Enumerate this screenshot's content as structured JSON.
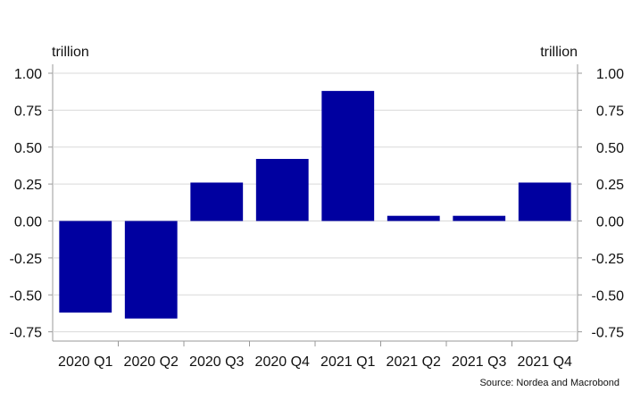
{
  "chart_data": {
    "type": "bar",
    "categories": [
      "2020 Q1",
      "2020 Q2",
      "2020 Q3",
      "2020 Q4",
      "2021 Q1",
      "2021 Q2",
      "2021 Q3",
      "2021 Q4"
    ],
    "values": [
      -0.62,
      -0.66,
      0.26,
      0.42,
      0.88,
      0.035,
      0.035,
      0.26
    ],
    "ylim": [
      -0.75,
      1.0
    ],
    "yticks": [
      "1.00",
      "0.75",
      "0.50",
      "0.25",
      "0.00",
      "-0.25",
      "-0.50",
      "-0.75"
    ],
    "y_unit_left": "trillion",
    "y_unit_right": "trillion",
    "grid": true,
    "bar_color": "#0000A0",
    "source": "Source: Nordea and Macrobond"
  }
}
